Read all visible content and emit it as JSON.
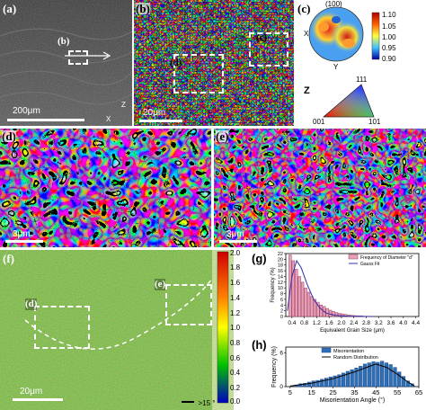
{
  "panel_a": {
    "label": "(a)",
    "inset_label": "(b)",
    "scale": "200μm",
    "axis_x": "X",
    "axis_z": "Z"
  },
  "panel_b": {
    "label": "(b)",
    "inset_c_label": "(c)",
    "inset_d_label": "(d)",
    "scale": "20μm"
  },
  "panel_c": {
    "label": "(c)",
    "pole": "(100)",
    "axis_x": "X",
    "axis_y": "Y",
    "colorbar_ticks": [
      "1.10",
      "1.05",
      "1.00",
      "0.95",
      "0.90"
    ],
    "ipf_axis": "Z",
    "ipf_corners": [
      "111",
      "001",
      "101"
    ]
  },
  "panel_d": {
    "label": "(d)",
    "scale": "3μm"
  },
  "panel_e": {
    "label": "(e)",
    "scale": "3μm"
  },
  "panel_f": {
    "label": "(f)",
    "inset_d": "(d)",
    "inset_e": "(e)",
    "scale": "20μm",
    "colorbar_ticks": [
      "2.0",
      "1.8",
      "1.6",
      "1.4",
      "1.2",
      "1.0",
      "0.8",
      "0.6",
      "0.4",
      "0.2",
      "0.0"
    ],
    "legend": ">15 °"
  },
  "chart_data": [
    {
      "type": "bar",
      "panel_label": "(g)",
      "xlabel": "Equivalent Grain Size (μm)",
      "ylabel": "Frequency (%)",
      "xlim": [
        0.2,
        4.5
      ],
      "ylim": [
        0,
        22
      ],
      "x_ticks": [
        "0.4",
        "0.8",
        "1.2",
        "1.6",
        "2.0",
        "2.4",
        "2.8",
        "3.2",
        "3.6",
        "4.0",
        "4.4"
      ],
      "y_ticks": [
        "0",
        "2",
        "4",
        "6",
        "8",
        "10",
        "12",
        "14",
        "16",
        "18",
        "20",
        "22"
      ],
      "legend": [
        "Frequency of Diameter \"d\"",
        "Gauss Fit"
      ],
      "bin_width": 0.1,
      "x": [
        0.35,
        0.45,
        0.55,
        0.65,
        0.75,
        0.85,
        0.95,
        1.05,
        1.15,
        1.25,
        1.35,
        1.45,
        1.55,
        1.65,
        1.75,
        1.85,
        1.95,
        2.05,
        2.15,
        2.25,
        2.35,
        2.45,
        2.55,
        2.65
      ],
      "values": [
        21.5,
        19.5,
        16.5,
        14,
        12,
        10,
        8.5,
        7,
        6,
        5,
        4,
        3.5,
        2.8,
        2.2,
        1.8,
        1.4,
        1.1,
        0.9,
        0.7,
        0.5,
        0.4,
        0.3,
        0.25,
        0.2
      ],
      "fit": [
        [
          0.25,
          2
        ],
        [
          0.4,
          14
        ],
        [
          0.55,
          19.5
        ],
        [
          0.7,
          17
        ],
        [
          0.9,
          11
        ],
        [
          1.1,
          6
        ],
        [
          1.3,
          3
        ],
        [
          1.5,
          1.2
        ],
        [
          1.8,
          0.4
        ],
        [
          2.2,
          0.1
        ],
        [
          3.0,
          0
        ]
      ]
    },
    {
      "type": "bar",
      "panel_label": "(h)",
      "xlabel": "Misorientation Angle (°)",
      "ylabel": "Frequency (%)",
      "xlim": [
        3,
        65
      ],
      "ylim": [
        0,
        7
      ],
      "x_ticks": [
        "5",
        "15",
        "25",
        "35",
        "45",
        "55",
        "65"
      ],
      "y_ticks": [
        "0",
        "6"
      ],
      "legend": [
        "Misorientation",
        "Random Distribution"
      ],
      "x": [
        8,
        10,
        12,
        14,
        16,
        18,
        20,
        22,
        24,
        26,
        28,
        30,
        32,
        34,
        36,
        38,
        40,
        42,
        44,
        46,
        48,
        50,
        52,
        54,
        56,
        58,
        60,
        62
      ],
      "values": [
        0.3,
        0.5,
        0.6,
        0.8,
        1.0,
        1.1,
        1.3,
        1.5,
        1.7,
        1.9,
        2.1,
        2.4,
        2.7,
        3.0,
        3.3,
        3.6,
        4.0,
        4.2,
        4.4,
        4.3,
        4.5,
        4.2,
        3.9,
        3.4,
        2.6,
        1.8,
        1.0,
        0.5
      ],
      "random": [
        [
          5,
          0.1
        ],
        [
          15,
          0.6
        ],
        [
          25,
          1.4
        ],
        [
          35,
          2.6
        ],
        [
          42,
          3.6
        ],
        [
          45,
          4.0
        ],
        [
          50,
          3.4
        ],
        [
          55,
          2.2
        ],
        [
          60,
          0.8
        ],
        [
          63,
          0.1
        ]
      ]
    }
  ]
}
